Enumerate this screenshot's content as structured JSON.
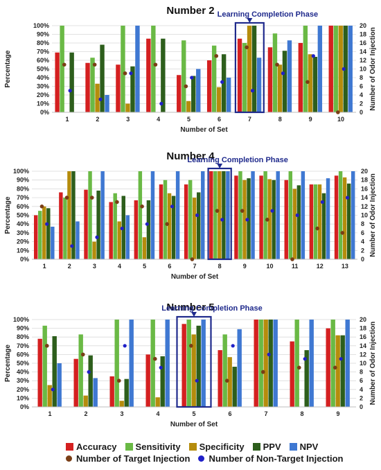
{
  "colors": {
    "accuracy": "#d42020",
    "sensitivity": "#6ab945",
    "specificity": "#b58c0c",
    "ppv": "#2d5e1c",
    "npv": "#3f78d2",
    "target_injection": "#7a3e16",
    "non_target_injection": "#2020c8",
    "phase_box": "#1f2a8c"
  },
  "legend": {
    "accuracy": "Accuracy",
    "sensitivity": "Sensitivity",
    "specificity": "Specificity",
    "ppv": "PPV",
    "npv": "NPV",
    "target_injection": "Number of Target Injection",
    "non_target_injection": "Number of Non-Target Injection"
  },
  "chart_data": [
    {
      "type": "bar",
      "title": "Number 2",
      "xlabel": "Number of Set",
      "ylabel": "Percentage",
      "y2label": "Number of Odor Injection",
      "ylim": [
        0,
        100
      ],
      "y2lim": [
        0,
        20
      ],
      "yticks": [
        "0%",
        "10%",
        "20%",
        "30%",
        "40%",
        "50%",
        "60%",
        "70%",
        "80%",
        "90%",
        "100%"
      ],
      "y2ticks": [
        "0",
        "2",
        "4",
        "6",
        "8",
        "10",
        "12",
        "14",
        "16",
        "18",
        "20"
      ],
      "categories": [
        "1",
        "2",
        "3",
        "4",
        "5",
        "6",
        "7",
        "8",
        "9",
        "10"
      ],
      "phase_label": "Learning Completion Phase",
      "phase_index": 6,
      "series": [
        {
          "name": "Accuracy",
          "values": [
            69,
            57,
            55,
            85,
            43,
            60,
            85,
            75,
            80,
            100
          ]
        },
        {
          "name": "Sensitivity",
          "values": [
            100,
            63,
            100,
            100,
            83,
            77,
            80,
            91,
            100,
            100
          ]
        },
        {
          "name": "Specificity",
          "values": [
            0,
            33,
            10,
            0,
            13,
            29,
            100,
            55,
            67,
            100
          ]
        },
        {
          "name": "PPV",
          "values": [
            69,
            78,
            53,
            85,
            42,
            67,
            100,
            71,
            64,
            100
          ]
        },
        {
          "name": "NPV",
          "values": [
            0,
            20,
            100,
            0,
            50,
            40,
            63,
            83,
            100,
            100
          ]
        }
      ],
      "target_injection": [
        11,
        11,
        9,
        11,
        6,
        13,
        15,
        11,
        7,
        0
      ],
      "non_target_injection": [
        5,
        3,
        9,
        2,
        8,
        7,
        5,
        9,
        13,
        10
      ]
    },
    {
      "type": "bar",
      "title": "Number 4",
      "xlabel": "Number of Set",
      "ylabel": "Percentage",
      "y2label": "Number of Odor Injection",
      "ylim": [
        0,
        100
      ],
      "y2lim": [
        0,
        20
      ],
      "yticks": [
        "0%",
        "10%",
        "20%",
        "30%",
        "40%",
        "50%",
        "60%",
        "70%",
        "80%",
        "90%",
        "100%"
      ],
      "y2ticks": [
        "0",
        "2",
        "4",
        "6",
        "8",
        "10",
        "12",
        "14",
        "16",
        "18",
        "20"
      ],
      "categories": [
        "1",
        "2",
        "3",
        "4",
        "5",
        "6",
        "7",
        "8",
        "9",
        "10",
        "11",
        "12",
        "13"
      ],
      "phase_label": "Learning Completion Phase",
      "phase_index": 7,
      "series": [
        {
          "name": "Accuracy",
          "values": [
            50,
            76,
            79,
            65,
            67,
            85,
            85,
            100,
            95,
            95,
            90,
            85,
            95
          ]
        },
        {
          "name": "Sensitivity",
          "values": [
            55,
            70,
            100,
            75,
            100,
            90,
            90,
            100,
            100,
            100,
            100,
            85,
            100
          ]
        },
        {
          "name": "Specificity",
          "values": [
            60,
            100,
            20,
            43,
            25,
            75,
            70,
            100,
            90,
            91,
            80,
            85,
            93
          ]
        },
        {
          "name": "PPV",
          "values": [
            58,
            100,
            78,
            72,
            67,
            72,
            76,
            100,
            92,
            90,
            84,
            75,
            86
          ]
        },
        {
          "name": "NPV",
          "values": [
            37,
            43,
            100,
            50,
            100,
            100,
            100,
            100,
            100,
            100,
            100,
            92,
            100
          ]
        }
      ],
      "target_injection": [
        12,
        14,
        14,
        13,
        12,
        8,
        0,
        11,
        11,
        9,
        0,
        7,
        6
      ],
      "non_target_injection": [
        8,
        3,
        5,
        7,
        8,
        12,
        10,
        9,
        9,
        11,
        10,
        13,
        14
      ]
    },
    {
      "type": "bar",
      "title": "Number 5",
      "xlabel": "Number of Set",
      "ylabel": "Percentage",
      "y2label": "Number of Odor Injection",
      "ylim": [
        0,
        100
      ],
      "y2lim": [
        0,
        20
      ],
      "yticks": [
        "0%",
        "10%",
        "20%",
        "30%",
        "40%",
        "50%",
        "60%",
        "70%",
        "80%",
        "90%",
        "100%"
      ],
      "y2ticks": [
        "0",
        "2",
        "4",
        "6",
        "8",
        "10",
        "12",
        "14",
        "16",
        "18",
        "20"
      ],
      "categories": [
        "1",
        "2",
        "3",
        "4",
        "5",
        "6",
        "7",
        "8",
        "9"
      ],
      "phase_label": "Learning Completion Phase",
      "phase_index": 4,
      "series": [
        {
          "name": "Accuracy",
          "values": [
            78,
            55,
            35,
            60,
            95,
            65,
            100,
            75,
            90
          ]
        },
        {
          "name": "Sensitivity",
          "values": [
            93,
            83,
            100,
            100,
            100,
            83,
            100,
            100,
            100
          ]
        },
        {
          "name": "Specificity",
          "values": [
            25,
            13,
            7,
            11,
            83,
            57,
            100,
            0,
            82
          ]
        },
        {
          "name": "PPV",
          "values": [
            81,
            59,
            32,
            58,
            93,
            46,
            100,
            65,
            82
          ]
        },
        {
          "name": "NPV",
          "values": [
            50,
            33,
            100,
            100,
            100,
            89,
            100,
            100,
            100
          ]
        }
      ],
      "target_injection": [
        14,
        12,
        6,
        11,
        14,
        6,
        8,
        9,
        9
      ],
      "non_target_injection": [
        4,
        8,
        14,
        9,
        6,
        14,
        12,
        11,
        11
      ]
    }
  ]
}
